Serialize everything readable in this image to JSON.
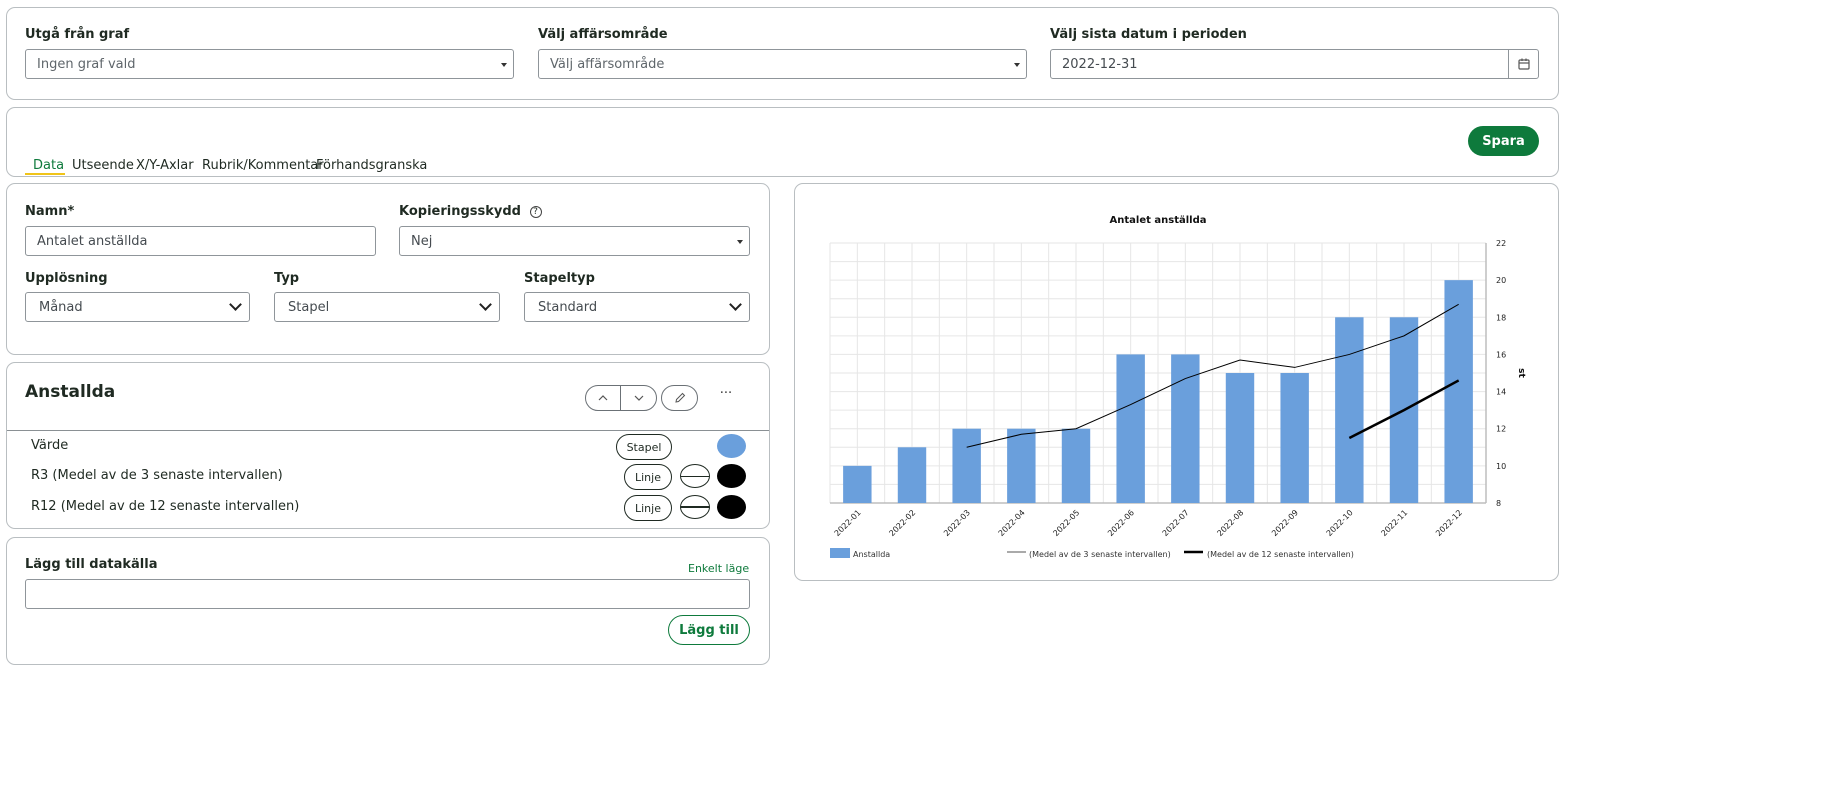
{
  "filters": {
    "graph": {
      "label": "Utgå från graf",
      "value": "Ingen graf vald"
    },
    "area": {
      "label": "Välj affärsområde",
      "value": "Välj affärsområde"
    },
    "date": {
      "label": "Välj sista datum i perioden",
      "value": "2022-12-31"
    }
  },
  "tabs": [
    {
      "label": "Data",
      "active": true
    },
    {
      "label": "Utseende"
    },
    {
      "label": "X/Y-Axlar"
    },
    {
      "label": "Rubrik/Kommentar"
    },
    {
      "label": "Förhandsgranska"
    }
  ],
  "save_label": "Spara",
  "form": {
    "name_label": "Namn*",
    "name_value": "Antalet anställda",
    "copy_label": "Kopieringsskydd",
    "copy_value": "Nej",
    "resolution_label": "Upplösning",
    "resolution_value": "Månad",
    "type_label": "Typ",
    "type_value": "Stapel",
    "bartype_label": "Stapeltyp",
    "bartype_value": "Standard"
  },
  "series_card": {
    "title": "Anstallda",
    "rows": [
      {
        "label": "Värde",
        "kind": "Stapel",
        "color": "#6a9fdc"
      },
      {
        "label": "R3 (Medel av de 3 senaste intervallen)",
        "kind": "Linje",
        "color": "#000000"
      },
      {
        "label": "R12 (Medel av de 12 senaste intervallen)",
        "kind": "Linje",
        "color": "#000000"
      }
    ]
  },
  "datasource": {
    "label": "Lägg till datakälla",
    "mode_link": "Enkelt läge",
    "value": "",
    "add_label": "Lägg till"
  },
  "colors": {
    "accent": "#0e7a3c",
    "tab_underline": "#f0c419",
    "bar": "#6a9fdc"
  },
  "chart_data": {
    "type": "bar",
    "title": "Antalet anställda",
    "ylabel": "st",
    "ylim": [
      8,
      22
    ],
    "yticks": [
      8,
      10,
      12,
      14,
      16,
      18,
      20,
      22
    ],
    "categories": [
      "2022-01",
      "2022-02",
      "2022-03",
      "2022-04",
      "2022-05",
      "2022-06",
      "2022-07",
      "2022-08",
      "2022-09",
      "2022-10",
      "2022-11",
      "2022-12"
    ],
    "series": [
      {
        "name": "Anstallda",
        "type": "bar",
        "values": [
          10,
          11,
          12,
          12,
          12,
          16,
          16,
          15,
          15,
          18,
          18,
          20
        ]
      },
      {
        "name": "(Medel av de 3 senaste intervallen)",
        "type": "line",
        "values": [
          null,
          null,
          11,
          11.7,
          12,
          13.3,
          14.7,
          15.7,
          15.3,
          16,
          17,
          18.7
        ]
      },
      {
        "name": "(Medel av de 12 senaste intervallen)",
        "type": "line",
        "values": [
          null,
          null,
          null,
          null,
          null,
          null,
          null,
          null,
          null,
          11.5,
          13,
          14.6
        ]
      }
    ],
    "grid": true,
    "legend_position": "bottom"
  }
}
